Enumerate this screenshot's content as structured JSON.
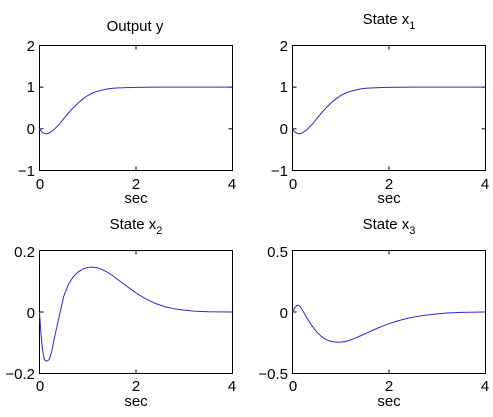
{
  "chart_data": [
    {
      "type": "line",
      "title": "Output y",
      "title_sub": "",
      "xlabel": "sec",
      "xlim": [
        0,
        4
      ],
      "ylim": [
        -1,
        2
      ],
      "xticks": [
        "0",
        "2",
        "4"
      ],
      "yticks": [
        "−1",
        "0",
        "1",
        "2"
      ],
      "series": [
        {
          "color": "#2a2ad0",
          "x": [
            0,
            0.05,
            0.1,
            0.15,
            0.2,
            0.3,
            0.4,
            0.5,
            0.6,
            0.7,
            0.8,
            0.9,
            1.0,
            1.1,
            1.2,
            1.3,
            1.4,
            1.5,
            1.6,
            1.8,
            2.0,
            2.2,
            2.4,
            2.6,
            2.8,
            3.0,
            3.2,
            3.5,
            4.0
          ],
          "y": [
            0,
            -0.08,
            -0.11,
            -0.12,
            -0.1,
            -0.02,
            0.1,
            0.24,
            0.38,
            0.51,
            0.62,
            0.72,
            0.8,
            0.86,
            0.9,
            0.93,
            0.955,
            0.97,
            0.98,
            0.99,
            0.995,
            0.998,
            1.0,
            1.0,
            1.0,
            1.0,
            1.0,
            1.0,
            1.0
          ]
        }
      ]
    },
    {
      "type": "line",
      "title": "State x",
      "title_sub": "1",
      "xlabel": "sec",
      "xlim": [
        0,
        4
      ],
      "ylim": [
        -1,
        2
      ],
      "xticks": [
        "0",
        "2",
        "4"
      ],
      "yticks": [
        "−1",
        "0",
        "1",
        "2"
      ],
      "series": [
        {
          "color": "#2a2ad0",
          "x": [
            0,
            0.05,
            0.1,
            0.15,
            0.2,
            0.3,
            0.4,
            0.5,
            0.6,
            0.7,
            0.8,
            0.9,
            1.0,
            1.1,
            1.2,
            1.3,
            1.4,
            1.5,
            1.6,
            1.8,
            2.0,
            2.2,
            2.4,
            2.6,
            2.8,
            3.0,
            3.2,
            3.5,
            4.0
          ],
          "y": [
            0,
            -0.08,
            -0.11,
            -0.12,
            -0.1,
            -0.02,
            0.1,
            0.24,
            0.38,
            0.51,
            0.62,
            0.72,
            0.8,
            0.86,
            0.9,
            0.93,
            0.955,
            0.97,
            0.98,
            0.99,
            0.995,
            0.998,
            1.0,
            1.0,
            1.0,
            1.0,
            1.0,
            1.0,
            1.0
          ]
        }
      ]
    },
    {
      "type": "line",
      "title": "State x",
      "title_sub": "2",
      "xlabel": "sec",
      "xlim": [
        0,
        4
      ],
      "ylim": [
        -0.2,
        0.2
      ],
      "xticks": [
        "0",
        "2",
        "4"
      ],
      "yticks": [
        "−0.2",
        "0",
        "0.2"
      ],
      "series": [
        {
          "color": "#2a2ad0",
          "x": [
            0,
            0.03,
            0.06,
            0.1,
            0.15,
            0.2,
            0.25,
            0.3,
            0.4,
            0.5,
            0.6,
            0.7,
            0.8,
            0.9,
            1.0,
            1.1,
            1.2,
            1.3,
            1.4,
            1.5,
            1.6,
            1.8,
            2.0,
            2.2,
            2.4,
            2.6,
            2.8,
            3.0,
            3.2,
            3.5,
            4.0
          ],
          "y": [
            0,
            -0.07,
            -0.12,
            -0.155,
            -0.16,
            -0.155,
            -0.13,
            -0.09,
            -0.02,
            0.05,
            0.09,
            0.115,
            0.13,
            0.14,
            0.145,
            0.146,
            0.144,
            0.138,
            0.13,
            0.12,
            0.108,
            0.085,
            0.062,
            0.043,
            0.028,
            0.017,
            0.01,
            0.006,
            0.003,
            0.001,
            0
          ]
        }
      ]
    },
    {
      "type": "line",
      "title": "State x",
      "title_sub": "3",
      "xlabel": "sec",
      "xlim": [
        0,
        4
      ],
      "ylim": [
        -0.5,
        0.5
      ],
      "xticks": [
        "0",
        "2",
        "4"
      ],
      "yticks": [
        "−0.5",
        "0",
        "0.5"
      ],
      "series": [
        {
          "color": "#2a2ad0",
          "x": [
            0,
            0.04,
            0.08,
            0.12,
            0.16,
            0.2,
            0.3,
            0.4,
            0.5,
            0.6,
            0.7,
            0.8,
            0.9,
            1.0,
            1.1,
            1.2,
            1.3,
            1.4,
            1.6,
            1.8,
            2.0,
            2.2,
            2.4,
            2.6,
            2.8,
            3.0,
            3.2,
            3.5,
            4.0
          ],
          "y": [
            0,
            0.03,
            0.05,
            0.055,
            0.045,
            0.02,
            -0.05,
            -0.11,
            -0.16,
            -0.2,
            -0.225,
            -0.24,
            -0.245,
            -0.245,
            -0.24,
            -0.228,
            -0.212,
            -0.195,
            -0.16,
            -0.125,
            -0.095,
            -0.07,
            -0.05,
            -0.035,
            -0.024,
            -0.015,
            -0.008,
            -0.003,
            0
          ]
        }
      ]
    }
  ]
}
